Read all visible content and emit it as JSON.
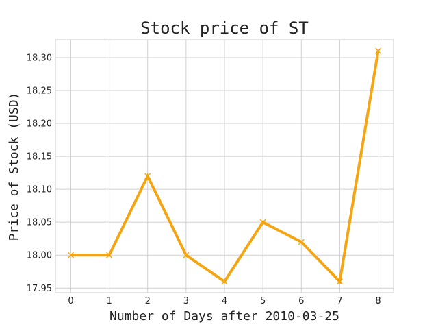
{
  "chart_data": {
    "type": "line",
    "title": "Stock price of ST",
    "xlabel": "Number of Days after 2010-03-25",
    "ylabel": "Price of Stock (USD)",
    "x": [
      0,
      1,
      2,
      3,
      4,
      5,
      6,
      7,
      8
    ],
    "x_ticks": [
      "0",
      "1",
      "2",
      "3",
      "4",
      "5",
      "6",
      "7",
      "8"
    ],
    "y_ticks": [
      "17.95",
      "18.00",
      "18.05",
      "18.10",
      "18.15",
      "18.20",
      "18.25",
      "18.30"
    ],
    "xlim": [
      -0.4,
      8.4
    ],
    "ylim": [
      17.943,
      18.327
    ],
    "grid": true,
    "series": [
      {
        "values": [
          18.0,
          18.0,
          18.12,
          18.0,
          17.96,
          18.05,
          18.02,
          17.96,
          18.31
        ],
        "color": "#f5a511",
        "marker": "x"
      }
    ]
  }
}
